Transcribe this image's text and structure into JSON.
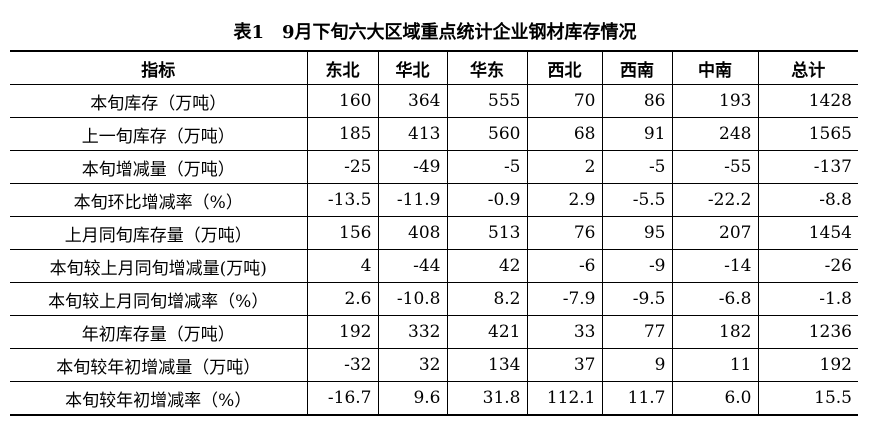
{
  "title": "表1　9月下旬六大区域重点统计企业钢材库存情况",
  "table": {
    "header": [
      "指标",
      "东北",
      "华北",
      "华东",
      "西北",
      "西南",
      "中南",
      "总计"
    ],
    "rows": [
      [
        "本旬库存（万吨）",
        "160",
        "364",
        "555",
        "70",
        "86",
        "193",
        "1428"
      ],
      [
        "上一旬库存（万吨）",
        "185",
        "413",
        "560",
        "68",
        "91",
        "248",
        "1565"
      ],
      [
        "本旬增减量（万吨）",
        "-25",
        "-49",
        "-5",
        "2",
        "-5",
        "-55",
        "-137"
      ],
      [
        "本旬环比增减率（%）",
        "-13.5",
        "-11.9",
        "-0.9",
        "2.9",
        "-5.5",
        "-22.2",
        "-8.8"
      ],
      [
        "上月同旬库存量（万吨）",
        "156",
        "408",
        "513",
        "76",
        "95",
        "207",
        "1454"
      ],
      [
        "本旬较上月同旬增减量(万吨)",
        "4",
        "-44",
        "42",
        "-6",
        "-9",
        "-14",
        "-26"
      ],
      [
        "本旬较上月同旬增减率（%）",
        "2.6",
        "-10.8",
        "8.2",
        "-7.9",
        "-9.5",
        "-6.8",
        "-1.8"
      ],
      [
        "年初库存量（万吨）",
        "192",
        "332",
        "421",
        "33",
        "77",
        "182",
        "1236"
      ],
      [
        "本旬较年初增减量（万吨）",
        "-32",
        "32",
        "134",
        "37",
        "9",
        "11",
        "192"
      ],
      [
        "本旬较年初增减率（%）",
        "-16.7",
        "9.6",
        "31.8",
        "112.1",
        "11.7",
        "6.0",
        "15.5"
      ]
    ]
  }
}
